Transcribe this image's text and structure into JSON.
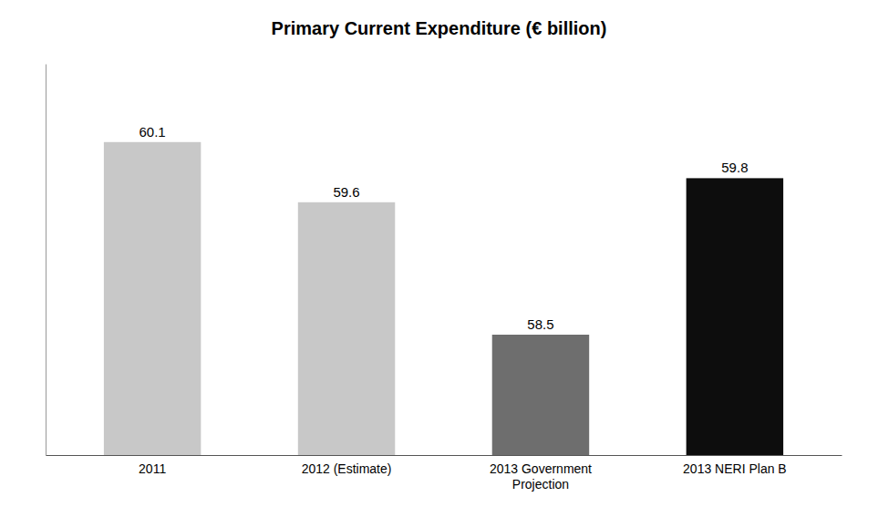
{
  "chart_data": {
    "type": "bar",
    "title": "Primary Current Expenditure (€ billion)",
    "categories": [
      "2011",
      "2012 (Estimate)",
      "2013 Government\nProjection",
      "2013 NERI Plan B"
    ],
    "values": [
      60.1,
      59.6,
      58.5,
      59.8
    ],
    "colors": [
      "#c8c8c8",
      "#c8c8c8",
      "#6e6e6e",
      "#0d0d0d"
    ],
    "ylim": [
      57.5,
      60.75
    ],
    "grid": false,
    "data_labels": true,
    "tick_labels": "x"
  }
}
